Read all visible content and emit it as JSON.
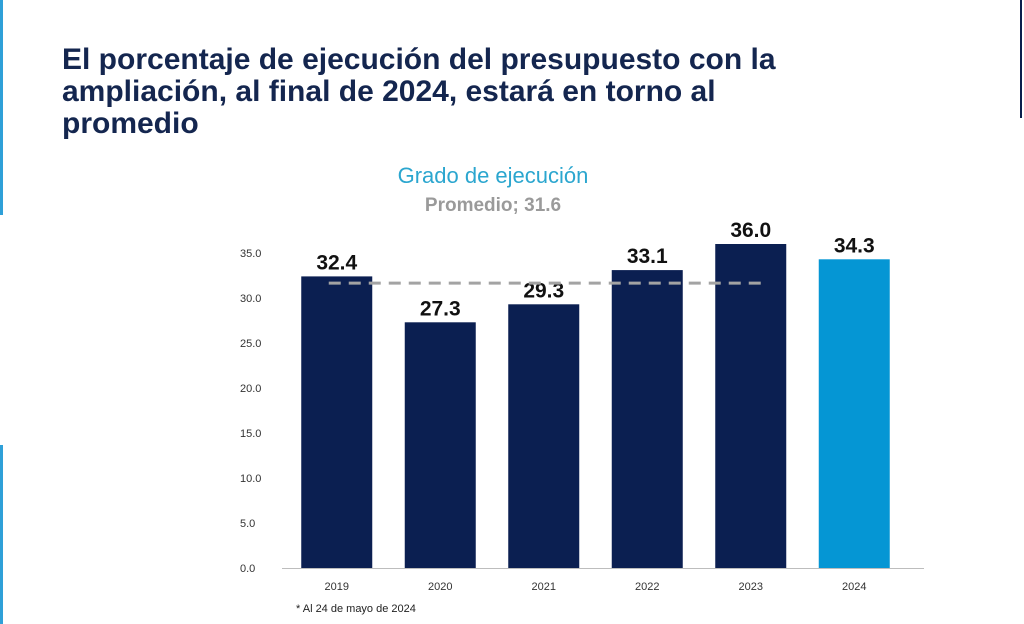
{
  "title": "El porcentaje de ejecución del presupuesto con la ampliación, al final de 2024, estará en torno al promedio",
  "chart_title": "Grado de ejecución",
  "chart_subtitle": "Promedio; 31.6",
  "footnote": "* Al 24 de mayo de 2024",
  "colors": {
    "title": "#14264f",
    "bar": "#0b1f51",
    "bar_highlight": "#0596d4",
    "average_line": "#a3a3a3",
    "chart_title": "#2ba6cf"
  },
  "chart_data": {
    "type": "bar",
    "title": "Grado de ejecución",
    "subtitle": "Promedio; 31.6",
    "categories": [
      "2019",
      "2020",
      "2021",
      "2022",
      "2023",
      "2024"
    ],
    "values": [
      32.4,
      27.3,
      29.3,
      33.1,
      36.0,
      34.3
    ],
    "value_labels": [
      "32.4",
      "27.3",
      "29.3",
      "33.1",
      "36.0",
      "34.3"
    ],
    "highlight_category": "2024",
    "average": 31.6,
    "average_line_style": "dashed",
    "y_ticks": [
      "0.0",
      "5.0",
      "10.0",
      "15.0",
      "20.0",
      "25.0",
      "30.0",
      "35.0"
    ],
    "ylim": [
      0,
      36.0
    ],
    "grid": false,
    "xlabel": "",
    "ylabel": ""
  }
}
